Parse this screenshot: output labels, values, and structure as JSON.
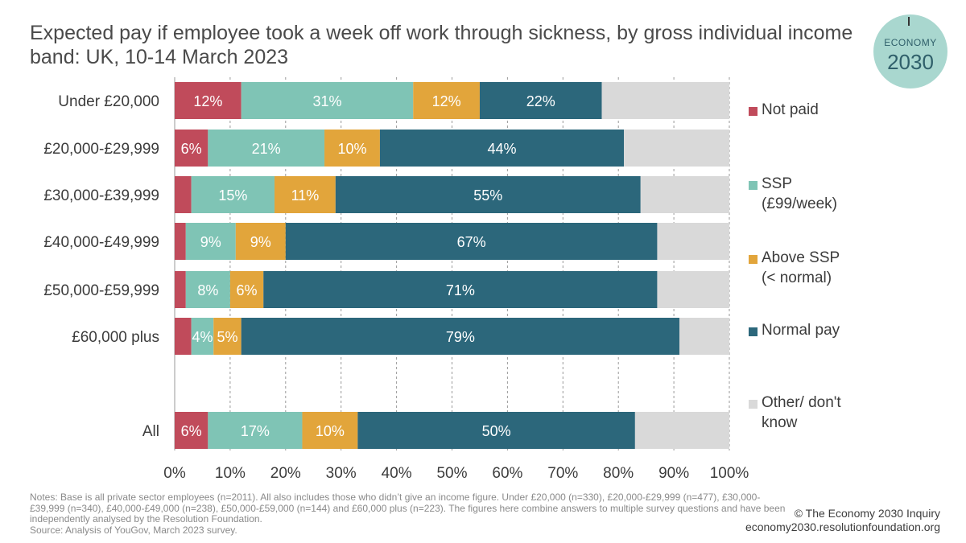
{
  "title": "Expected pay if employee took a week off work through sickness, by gross individual income band: UK, 10-14 March 2023",
  "logo": {
    "line1": "ECONOMY",
    "line2": "2030"
  },
  "chart_data": {
    "type": "bar",
    "orientation": "horizontal",
    "stacked": true,
    "categories": [
      "Under £20,000",
      "£20,000-£29,999",
      "£30,000-£39,999",
      "£40,000-£49,999",
      "£50,000-£59,999",
      "£60,000 plus",
      "All"
    ],
    "series": [
      {
        "name": "Not paid",
        "color": "#c04b5b",
        "values": [
          12,
          6,
          3,
          2,
          2,
          3,
          6
        ],
        "labels": [
          "12%",
          "6%",
          "",
          "",
          "",
          "",
          "6%"
        ]
      },
      {
        "name": "SSP (£99/week)",
        "color": "#7fc4b5",
        "values": [
          31,
          21,
          15,
          9,
          8,
          4,
          17
        ],
        "labels": [
          "31%",
          "21%",
          "15%",
          "9%",
          "8%",
          "4%",
          "17%"
        ]
      },
      {
        "name": "Above SSP (< normal)",
        "color": "#e2a53b",
        "values": [
          12,
          10,
          11,
          9,
          6,
          5,
          10
        ],
        "labels": [
          "12%",
          "10%",
          "11%",
          "9%",
          "6%",
          "5%",
          "10%"
        ]
      },
      {
        "name": "Normal pay",
        "color": "#2c677b",
        "values": [
          22,
          44,
          55,
          67,
          71,
          79,
          50
        ],
        "labels": [
          "22%",
          "44%",
          "55%",
          "67%",
          "71%",
          "79%",
          "50%"
        ]
      },
      {
        "name": "Other/ don't know",
        "color": "#d9d9d9",
        "values": [
          23,
          19,
          17,
          13,
          13,
          9,
          18
        ],
        "labels": [
          "",
          "",
          "",
          "",
          "",
          "",
          ""
        ]
      }
    ],
    "xlim": [
      0,
      100
    ],
    "x_ticks": [
      "0%",
      "10%",
      "20%",
      "30%",
      "40%",
      "50%",
      "60%",
      "70%",
      "80%",
      "90%",
      "100%"
    ],
    "grid": true,
    "legend_position": "right"
  },
  "legend": [
    {
      "lines": [
        "Not paid"
      ],
      "color": "#c04b5b"
    },
    {
      "lines": [
        "SSP",
        "(£99/week)"
      ],
      "color": "#7fc4b5"
    },
    {
      "lines": [
        "Above SSP",
        "(< normal)"
      ],
      "color": "#e2a53b"
    },
    {
      "lines": [
        "Normal pay"
      ],
      "color": "#2c677b"
    },
    {
      "lines": [
        "Other/ don't",
        "know"
      ],
      "color": "#d9d9d9"
    }
  ],
  "notes": "Notes: Base is all private sector employees (n=2011). All also includes those who didn’t give an income figure. Under £20,000 (n=330), £20,000-£29,999 (n=477), £30,000-£39,999 (n=340), £40,000-£49,000 (n=238), £50,000-£59,000 (n=144) and £60,000 plus (n=223). The figures here combine answers to multiple survey questions and have been independently analysed by the Resolution Foundation.",
  "source": "Source: Analysis of YouGov, March 2023 survey.",
  "credit": {
    "line1": "© The Economy 2030 Inquiry",
    "line2": "economy2030.resolutionfoundation.org"
  }
}
